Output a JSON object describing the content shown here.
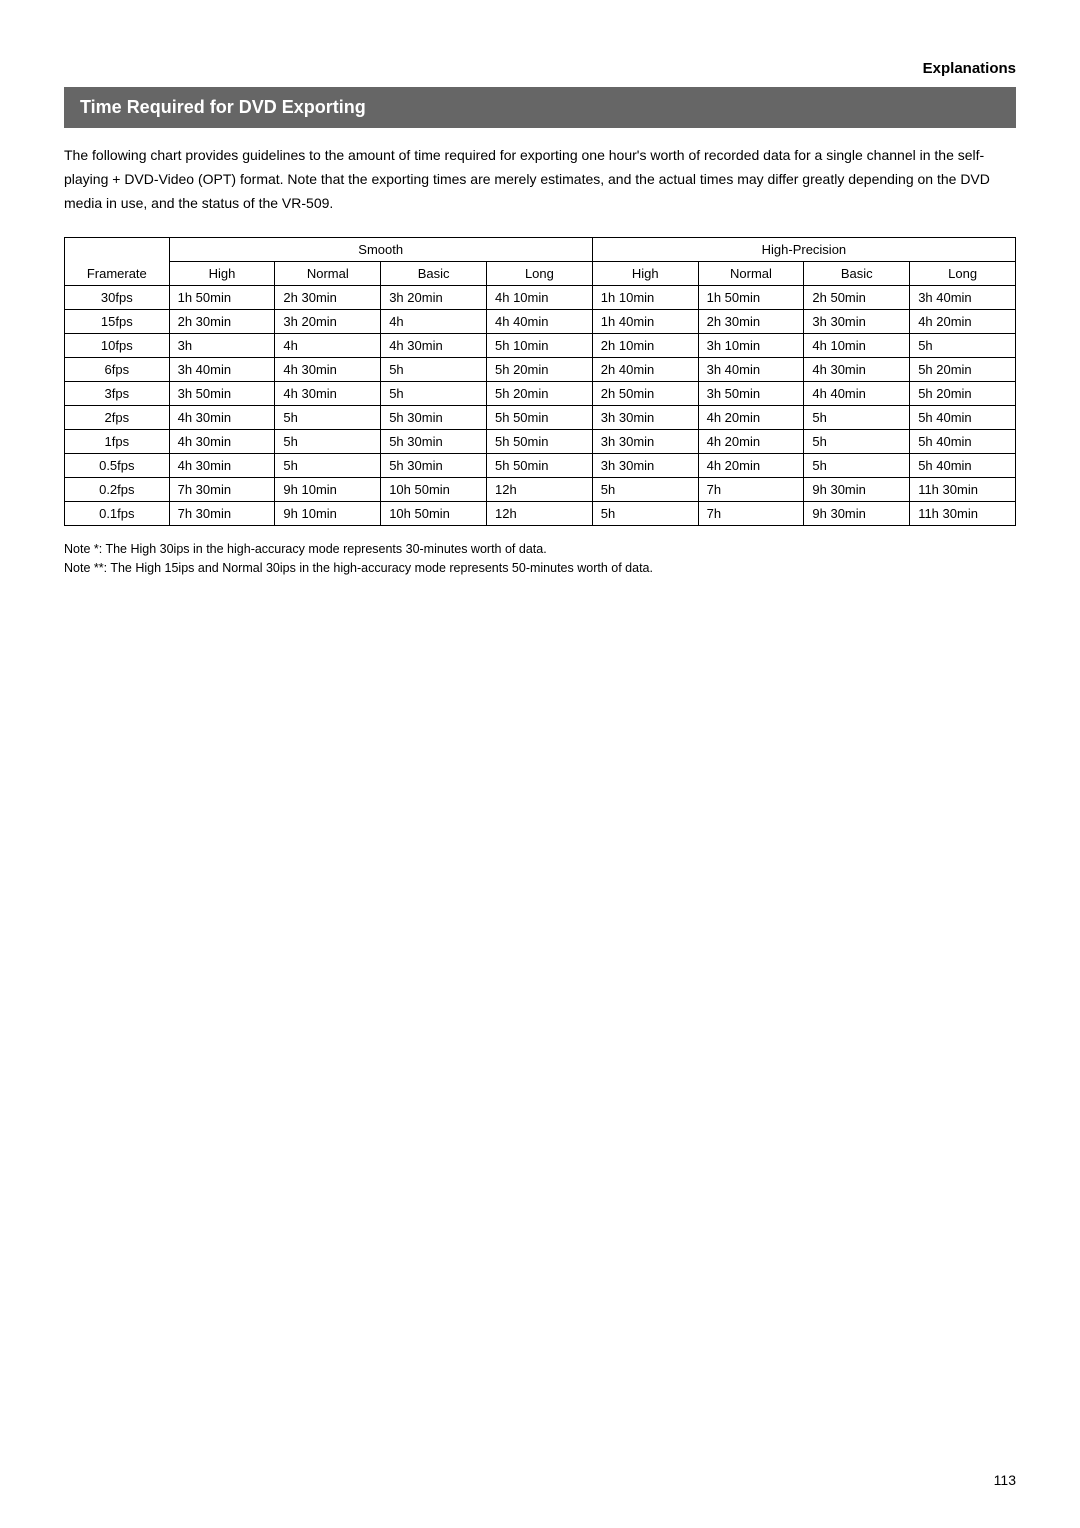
{
  "header": {
    "sectionLabel": "Explanations",
    "title": "Time Required for DVD Exporting"
  },
  "intro": "The following chart provides guidelines to the amount of time required for exporting one hour's worth of recorded data for a single channel in the self-playing + DVD-Video (OPT) format. Note that the exporting times are merely estimates, and the actual times may differ greatly depending on the DVD media in use, and the status of the VR-509.",
  "table": {
    "rowHeader": "Framerate",
    "groups": [
      "Smooth",
      "High-Precision"
    ],
    "subHeaders": [
      "High",
      "Normal",
      "Basic",
      "Long",
      "High",
      "Normal",
      "Basic",
      "Long"
    ],
    "rows": [
      {
        "fr": "30fps",
        "cells": [
          "1h 50min",
          "2h 30min",
          "3h 20min",
          "4h 10min",
          "1h 10min",
          "1h 50min",
          "2h 50min",
          "3h 40min"
        ]
      },
      {
        "fr": "15fps",
        "cells": [
          "2h 30min",
          "3h 20min",
          "4h",
          "4h 40min",
          "1h 40min",
          "2h 30min",
          "3h 30min",
          "4h 20min"
        ]
      },
      {
        "fr": "10fps",
        "cells": [
          "3h",
          "4h",
          "4h 30min",
          "5h 10min",
          "2h 10min",
          "3h 10min",
          "4h 10min",
          "5h"
        ]
      },
      {
        "fr": "6fps",
        "cells": [
          "3h 40min",
          "4h 30min",
          "5h",
          "5h 20min",
          "2h 40min",
          "3h 40min",
          "4h 30min",
          "5h 20min"
        ]
      },
      {
        "fr": "3fps",
        "cells": [
          "3h 50min",
          "4h 30min",
          "5h",
          "5h 20min",
          "2h 50min",
          "3h 50min",
          "4h 40min",
          "5h 20min"
        ]
      },
      {
        "fr": "2fps",
        "cells": [
          "4h 30min",
          "5h",
          "5h 30min",
          "5h 50min",
          "3h 30min",
          "4h 20min",
          "5h",
          "5h 40min"
        ]
      },
      {
        "fr": "1fps",
        "cells": [
          "4h 30min",
          "5h",
          "5h 30min",
          "5h 50min",
          "3h 30min",
          "4h 20min",
          "5h",
          "5h 40min"
        ]
      },
      {
        "fr": "0.5fps",
        "cells": [
          "4h 30min",
          "5h",
          "5h 30min",
          "5h 50min",
          "3h 30min",
          "4h 20min",
          "5h",
          "5h 40min"
        ]
      },
      {
        "fr": "0.2fps",
        "cells": [
          "7h 30min",
          "9h 10min",
          "10h 50min",
          "12h",
          "5h",
          "7h",
          "9h 30min",
          "11h 30min"
        ]
      },
      {
        "fr": "0.1fps",
        "cells": [
          "7h 30min",
          "9h 10min",
          "10h 50min",
          "12h",
          "5h",
          "7h",
          "9h 30min",
          "11h 30min"
        ]
      }
    ]
  },
  "notes": {
    "n1": "Note *: The High 30ips in the high-accuracy mode represents 30-minutes worth of data.",
    "n2": "Note **: The High 15ips and Normal 30ips in the high-accuracy mode represents 50-minutes worth of data."
  },
  "pageNumber": "113"
}
